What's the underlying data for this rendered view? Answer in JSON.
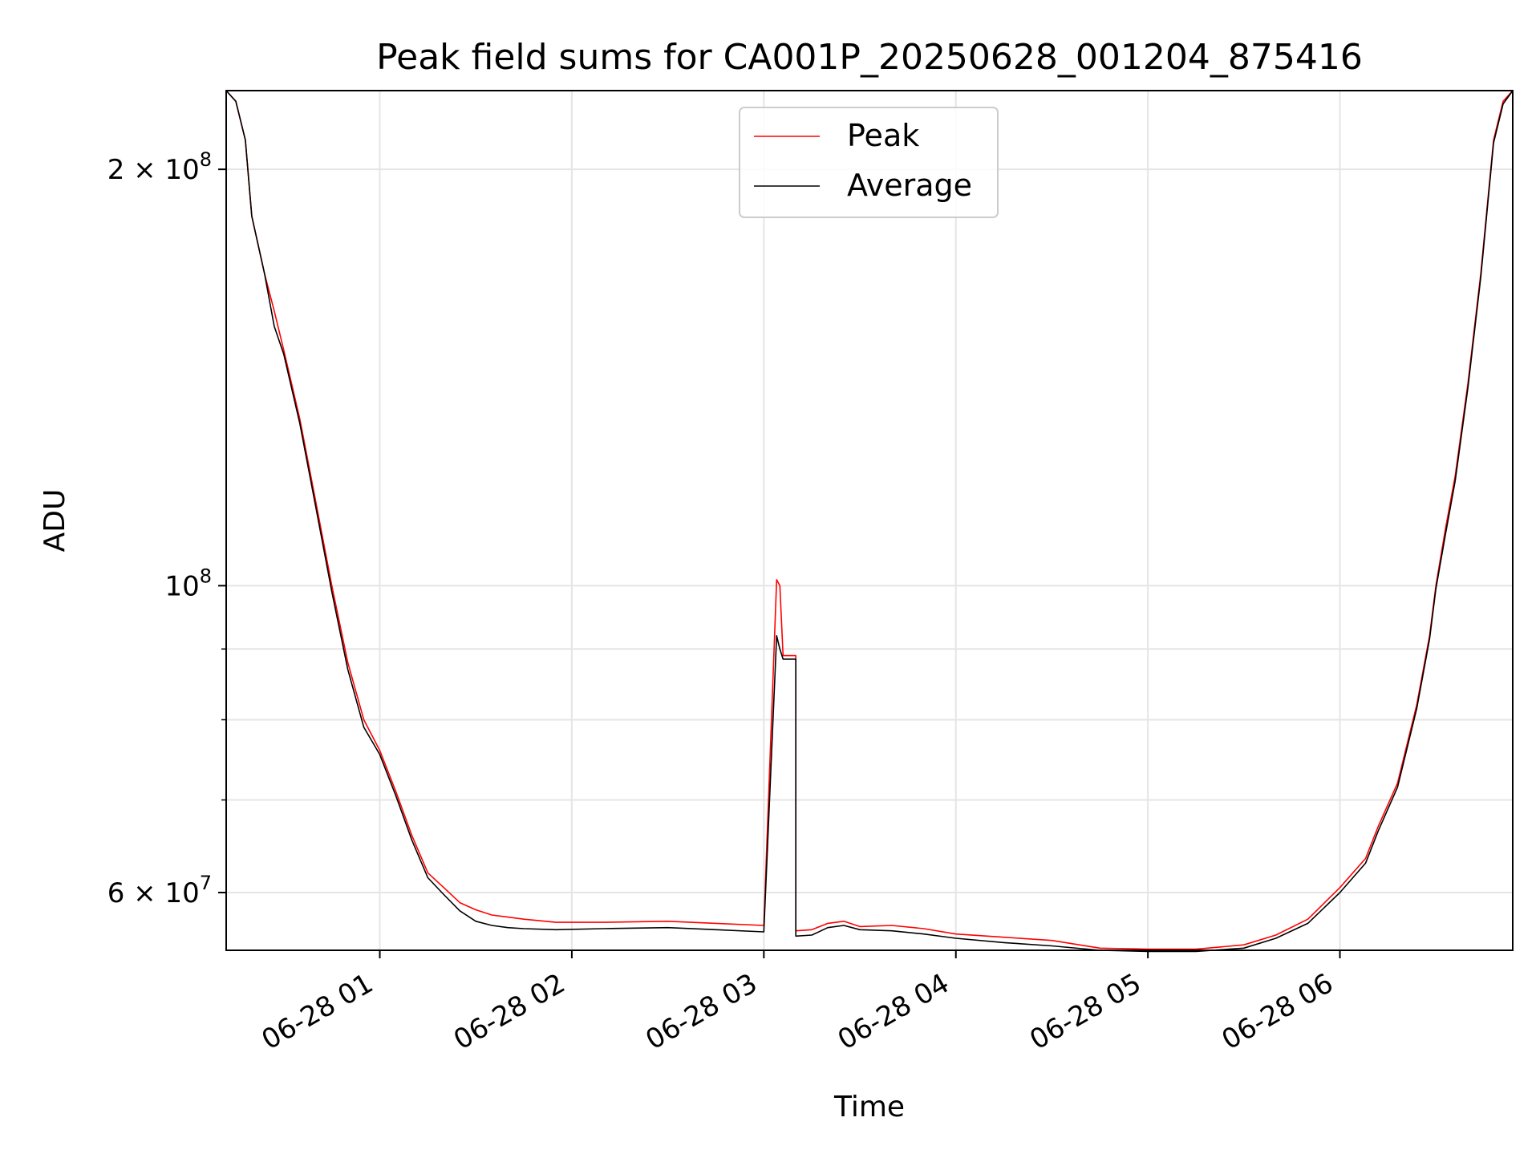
{
  "chart_data": {
    "type": "line",
    "title": "Peak field sums for CA001P_20250628_001204_875416",
    "xlabel": "Time",
    "ylabel": "ADU",
    "x_scale": "time",
    "y_scale": "log",
    "xlim": [
      "2025-06-28 00:12",
      "2025-06-28 06:54"
    ],
    "ylim": [
      54500000,
      228000000
    ],
    "grid": true,
    "legend_placement": "upper-center",
    "x_ticks": [
      {
        "value": "2025-06-28 01:00",
        "label": "06-28 01"
      },
      {
        "value": "2025-06-28 02:00",
        "label": "06-28 02"
      },
      {
        "value": "2025-06-28 03:00",
        "label": "06-28 03"
      },
      {
        "value": "2025-06-28 04:00",
        "label": "06-28 04"
      },
      {
        "value": "2025-06-28 05:00",
        "label": "06-28 05"
      },
      {
        "value": "2025-06-28 06:00",
        "label": "06-28 06"
      }
    ],
    "y_major_ticks": [
      {
        "value": 60000000,
        "base": "6 × 10",
        "exp": "7"
      },
      {
        "value": 100000000,
        "base": "10",
        "exp": "8"
      },
      {
        "value": 200000000,
        "base": "2 × 10",
        "exp": "8"
      }
    ],
    "y_minor_ticks": [
      70000000,
      80000000,
      90000000
    ],
    "series": [
      {
        "name": "Peak",
        "color": "#ff0000",
        "x": [
          "2025-06-28 00:12",
          "2025-06-28 00:15",
          "2025-06-28 00:18",
          "2025-06-28 00:20",
          "2025-06-28 00:24",
          "2025-06-28 00:27",
          "2025-06-28 00:30",
          "2025-06-28 00:35",
          "2025-06-28 00:40",
          "2025-06-28 00:45",
          "2025-06-28 00:50",
          "2025-06-28 00:55",
          "2025-06-28 01:00",
          "2025-06-28 01:05",
          "2025-06-28 01:10",
          "2025-06-28 01:15",
          "2025-06-28 01:20",
          "2025-06-28 01:25",
          "2025-06-28 01:30",
          "2025-06-28 01:35",
          "2025-06-28 01:40",
          "2025-06-28 01:45",
          "2025-06-28 01:55",
          "2025-06-28 02:10",
          "2025-06-28 02:30",
          "2025-06-28 02:45",
          "2025-06-28 03:00",
          "2025-06-28 03:04",
          "2025-06-28 03:05",
          "2025-06-28 03:06",
          "2025-06-28 03:10",
          "2025-06-28 03:10",
          "2025-06-28 03:15",
          "2025-06-28 03:20",
          "2025-06-28 03:25",
          "2025-06-28 03:30",
          "2025-06-28 03:40",
          "2025-06-28 03:50",
          "2025-06-28 04:00",
          "2025-06-28 04:15",
          "2025-06-28 04:30",
          "2025-06-28 04:45",
          "2025-06-28 05:00",
          "2025-06-28 05:15",
          "2025-06-28 05:30",
          "2025-06-28 05:40",
          "2025-06-28 05:50",
          "2025-06-28 06:00",
          "2025-06-28 06:08",
          "2025-06-28 06:12",
          "2025-06-28 06:18",
          "2025-06-28 06:24",
          "2025-06-28 06:28",
          "2025-06-28 06:30",
          "2025-06-28 06:33",
          "2025-06-28 06:36",
          "2025-06-28 06:40",
          "2025-06-28 06:44",
          "2025-06-28 06:48",
          "2025-06-28 06:51",
          "2025-06-28 06:54"
        ],
        "y": [
          228000000,
          224000000,
          210000000,
          185000000,
          168000000,
          158000000,
          148000000,
          132000000,
          115000000,
          100000000,
          88000000,
          80000000,
          76000000,
          71000000,
          66000000,
          62000000,
          60500000,
          59000000,
          58300000,
          57800000,
          57600000,
          57400000,
          57100000,
          57100000,
          57200000,
          57000000,
          56800000,
          101000000,
          100000000,
          89000000,
          89000000,
          56300000,
          56400000,
          57000000,
          57200000,
          56700000,
          56800000,
          56500000,
          56000000,
          55700000,
          55400000,
          54700000,
          54600000,
          54600000,
          55000000,
          55900000,
          57400000,
          60500000,
          63500000,
          67000000,
          72000000,
          82000000,
          92000000,
          100000000,
          110000000,
          120000000,
          140000000,
          168000000,
          210000000,
          224000000,
          228000000
        ]
      },
      {
        "name": "Average",
        "color": "#000000",
        "x": [
          "2025-06-28 00:12",
          "2025-06-28 00:15",
          "2025-06-28 00:18",
          "2025-06-28 00:20",
          "2025-06-28 00:24",
          "2025-06-28 00:27",
          "2025-06-28 00:30",
          "2025-06-28 00:35",
          "2025-06-28 00:40",
          "2025-06-28 00:45",
          "2025-06-28 00:50",
          "2025-06-28 00:55",
          "2025-06-28 01:00",
          "2025-06-28 01:05",
          "2025-06-28 01:10",
          "2025-06-28 01:15",
          "2025-06-28 01:20",
          "2025-06-28 01:25",
          "2025-06-28 01:30",
          "2025-06-28 01:35",
          "2025-06-28 01:40",
          "2025-06-28 01:45",
          "2025-06-28 01:55",
          "2025-06-28 02:10",
          "2025-06-28 02:30",
          "2025-06-28 02:45",
          "2025-06-28 03:00",
          "2025-06-28 03:04",
          "2025-06-28 03:05",
          "2025-06-28 03:06",
          "2025-06-28 03:10",
          "2025-06-28 03:10",
          "2025-06-28 03:15",
          "2025-06-28 03:20",
          "2025-06-28 03:25",
          "2025-06-28 03:30",
          "2025-06-28 03:40",
          "2025-06-28 03:50",
          "2025-06-28 04:00",
          "2025-06-28 04:15",
          "2025-06-28 04:30",
          "2025-06-28 04:45",
          "2025-06-28 05:00",
          "2025-06-28 05:15",
          "2025-06-28 05:30",
          "2025-06-28 05:40",
          "2025-06-28 05:50",
          "2025-06-28 06:00",
          "2025-06-28 06:08",
          "2025-06-28 06:12",
          "2025-06-28 06:18",
          "2025-06-28 06:24",
          "2025-06-28 06:28",
          "2025-06-28 06:30",
          "2025-06-28 06:33",
          "2025-06-28 06:36",
          "2025-06-28 06:40",
          "2025-06-28 06:44",
          "2025-06-28 06:48",
          "2025-06-28 06:51",
          "2025-06-28 06:54"
        ],
        "y": [
          228000000,
          224000000,
          210000000,
          185000000,
          168000000,
          154000000,
          147000000,
          131000000,
          114000000,
          99000000,
          87000000,
          79000000,
          75500000,
          70500000,
          65500000,
          61500000,
          59800000,
          58200000,
          57200000,
          56800000,
          56600000,
          56500000,
          56400000,
          56500000,
          56600000,
          56400000,
          56200000,
          92000000,
          90000000,
          88500000,
          88500000,
          55800000,
          55900000,
          56600000,
          56800000,
          56400000,
          56300000,
          56000000,
          55600000,
          55200000,
          54900000,
          54500000,
          54400000,
          54400000,
          54700000,
          55600000,
          57000000,
          60000000,
          63000000,
          66500000,
          71500000,
          81500000,
          91500000,
          99500000,
          109000000,
          119000000,
          139000000,
          167000000,
          209000000,
          223000000,
          228000000
        ]
      }
    ]
  }
}
